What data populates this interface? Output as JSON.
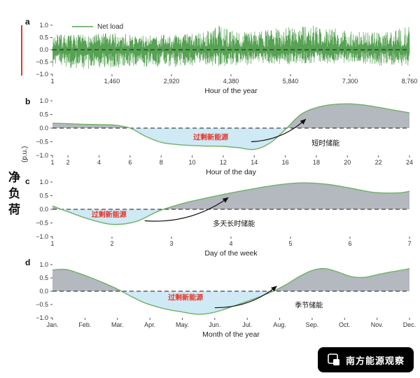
{
  "figure": {
    "ylabel_main": "净负荷",
    "ylabel_unit": "(p.u.)",
    "watermark": "南方能源观察",
    "colors": {
      "line_green": "#6fb266",
      "noise_green": "#57a254",
      "fill_gray": "#b4b8bf",
      "fill_blue": "#cfe9f5",
      "zero_line": "#1a1a1a",
      "excess_red": "#e5372b",
      "watermark_bg": "#000000"
    }
  },
  "chart_data": [
    {
      "panel": "a",
      "type": "line",
      "legend": "Net load",
      "xlabel": "Hour of the year",
      "xlim": [
        1,
        8760
      ],
      "xticks": [
        1,
        1460,
        2920,
        4380,
        5840,
        7300,
        8760
      ],
      "xtick_labels": [
        "1",
        "1,460",
        "2,920",
        "4,380",
        "5,840",
        "7,300",
        "8,760"
      ],
      "ylim": [
        -1,
        1
      ],
      "yticks": [
        1.0,
        0.5,
        0.0,
        -0.5,
        -1.0
      ],
      "noise": {
        "points": 1400,
        "seed": 7,
        "envelope_x": [
          1,
          730,
          1460,
          2190,
          2920,
          3650,
          4100,
          4380,
          5110,
          5840,
          6400,
          7300,
          8030,
          8760
        ],
        "upper": [
          0.65,
          0.6,
          0.7,
          0.6,
          0.62,
          0.7,
          1.0,
          0.8,
          0.75,
          1.0,
          1.0,
          0.8,
          0.7,
          0.95
        ],
        "lower": [
          -0.7,
          -0.8,
          -0.75,
          -0.7,
          -0.72,
          -0.62,
          -0.7,
          -0.65,
          -0.6,
          -0.6,
          -0.55,
          -0.6,
          -0.65,
          -0.7
        ]
      }
    },
    {
      "panel": "b",
      "type": "area",
      "xlabel": "Hour of the day",
      "xlim": [
        1,
        24
      ],
      "xticks": [
        1,
        2,
        4,
        6,
        8,
        10,
        12,
        14,
        16,
        18,
        20,
        22,
        24
      ],
      "ylim": [
        -1,
        1
      ],
      "yticks": [
        1.0,
        0.5,
        0.0,
        -0.5,
        -1.0
      ],
      "x": [
        1,
        2,
        3,
        4,
        5,
        6,
        7,
        8,
        9,
        10,
        11,
        12,
        13,
        14,
        15,
        16,
        17,
        18,
        19,
        20,
        21,
        22,
        23,
        24
      ],
      "y": [
        0.18,
        0.16,
        0.14,
        0.13,
        0.11,
        0.0,
        -0.3,
        -0.52,
        -0.6,
        -0.64,
        -0.66,
        -0.67,
        -0.72,
        -0.78,
        -0.55,
        -0.05,
        0.5,
        0.75,
        0.86,
        0.89,
        0.85,
        0.76,
        0.66,
        0.56
      ],
      "annotations": {
        "excess": {
          "text": "过剩新能源",
          "x": 11.2,
          "y": -0.35
        },
        "arrow": {
          "x1": 13.8,
          "y1": -0.5,
          "x2": 17.3,
          "y2": 0.32
        },
        "storage": {
          "text": "短时储能",
          "x": 18.6,
          "y": -0.55
        }
      }
    },
    {
      "panel": "c",
      "type": "area",
      "xlabel": "Day of the week",
      "xlim": [
        1,
        7
      ],
      "xticks": [
        1,
        2,
        3,
        4,
        5,
        6,
        7
      ],
      "ylim": [
        -1,
        1
      ],
      "yticks": [
        1.0,
        0.5,
        0.0,
        -0.5,
        -1.0
      ],
      "x": [
        1,
        1.3,
        1.6,
        2,
        2.4,
        2.8,
        3.2,
        3.6,
        4,
        4.4,
        4.8,
        5.2,
        5.6,
        6,
        6.4,
        6.8,
        7
      ],
      "y": [
        0.12,
        -0.12,
        -0.35,
        -0.55,
        -0.45,
        -0.05,
        0.22,
        0.42,
        0.6,
        0.76,
        0.9,
        0.97,
        0.92,
        0.78,
        0.62,
        0.6,
        0.66
      ],
      "annotations": {
        "excess": {
          "text": "过剩新能源",
          "x": 1.95,
          "y": -0.2
        },
        "arrow": {
          "x1": 2.55,
          "y1": -0.42,
          "x2": 3.95,
          "y2": 0.42
        },
        "storage": {
          "text": "多天长时储能",
          "x": 4.05,
          "y": -0.52
        }
      }
    },
    {
      "panel": "d",
      "type": "area",
      "xlabel": "Month of the year",
      "xlim": [
        0,
        11
      ],
      "xticks": [
        0,
        1,
        2,
        3,
        4,
        5,
        6,
        7,
        8,
        9,
        10,
        11
      ],
      "xtick_labels": [
        "Jan.",
        "Feb.",
        "Mar.",
        "Apr.",
        "May.",
        "Jun.",
        "Jul.",
        "Aug.",
        "Sep.",
        "Oct.",
        "Nov.",
        "Dec."
      ],
      "ylim": [
        -1,
        1
      ],
      "yticks": [
        1.0,
        0.5,
        0.0,
        -0.5,
        -1.0
      ],
      "x": [
        0,
        0.4,
        0.8,
        1.2,
        1.6,
        2,
        2.4,
        2.8,
        3.2,
        3.6,
        4,
        4.4,
        4.8,
        5.2,
        5.6,
        6,
        6.4,
        6.8,
        7.2,
        7.6,
        8,
        8.4,
        8.8,
        9.2,
        9.6,
        10,
        10.4,
        10.8,
        11
      ],
      "y": [
        0.8,
        0.82,
        0.68,
        0.5,
        0.3,
        0.08,
        -0.18,
        -0.42,
        -0.58,
        -0.7,
        -0.78,
        -0.86,
        -0.84,
        -0.72,
        -0.55,
        -0.38,
        -0.2,
        0.0,
        0.25,
        0.55,
        0.78,
        0.85,
        0.72,
        0.55,
        0.52,
        0.62,
        0.72,
        0.8,
        0.85
      ],
      "annotations": {
        "excess": {
          "text": "过剩新能源",
          "x": 4.1,
          "y": -0.25
        },
        "arrow": {
          "x1": 5.0,
          "y1": -0.62,
          "x2": 6.9,
          "y2": 0.18
        },
        "storage": {
          "text": "季节储能",
          "x": 7.9,
          "y": -0.52
        }
      }
    }
  ]
}
